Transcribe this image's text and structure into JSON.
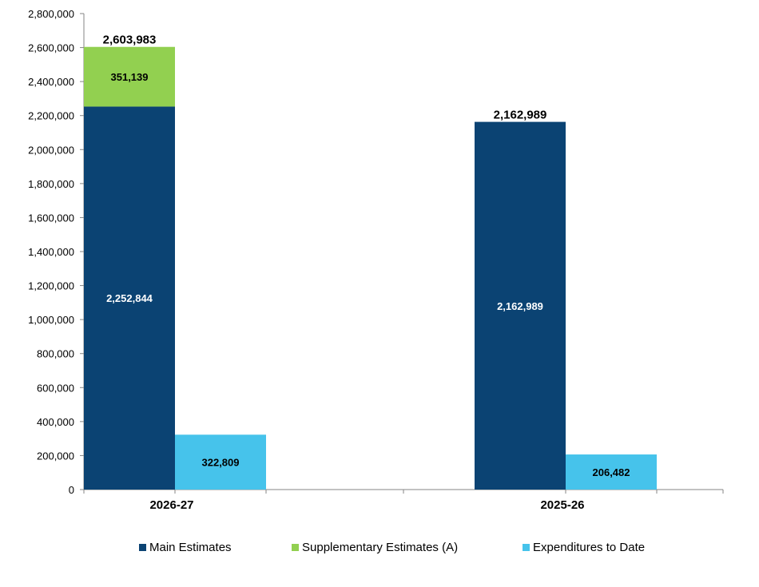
{
  "chart_data": {
    "type": "bar",
    "stacked": true,
    "categories": [
      "2026-27",
      "2025-26"
    ],
    "ylim": [
      0,
      2800000
    ],
    "yticks": [
      "0",
      "200,000",
      "400,000",
      "600,000",
      "800,000",
      "1,000,000",
      "1,200,000",
      "1,400,000",
      "1,600,000",
      "1,800,000",
      "2,000,000",
      "2,200,000",
      "2,400,000",
      "2,600,000",
      "2,800,000"
    ],
    "grid": false,
    "legend_position": "bottom",
    "series": [
      {
        "name": "Main Estimates",
        "color": "#0b4373",
        "stack": "authorities",
        "values": [
          2252844,
          2162989
        ],
        "labels": [
          "2,252,844",
          "2,162,989"
        ],
        "label_color": "#ffffff"
      },
      {
        "name": "Supplementary Estimates (A)",
        "color": "#92d050",
        "stack": "authorities",
        "values": [
          351139,
          null
        ],
        "labels": [
          "351,139",
          ""
        ],
        "label_color": "#000000"
      },
      {
        "name": "Expenditures to Date",
        "color": "#46c3eb",
        "stack": "expenditures",
        "values": [
          322809,
          206482
        ],
        "labels": [
          "322,809",
          "206,482"
        ],
        "label_color": "#000000"
      }
    ],
    "totals": [
      {
        "value": 2603983,
        "label": "2,603,983"
      },
      {
        "value": 2162989,
        "label": "2,162,989"
      }
    ]
  }
}
